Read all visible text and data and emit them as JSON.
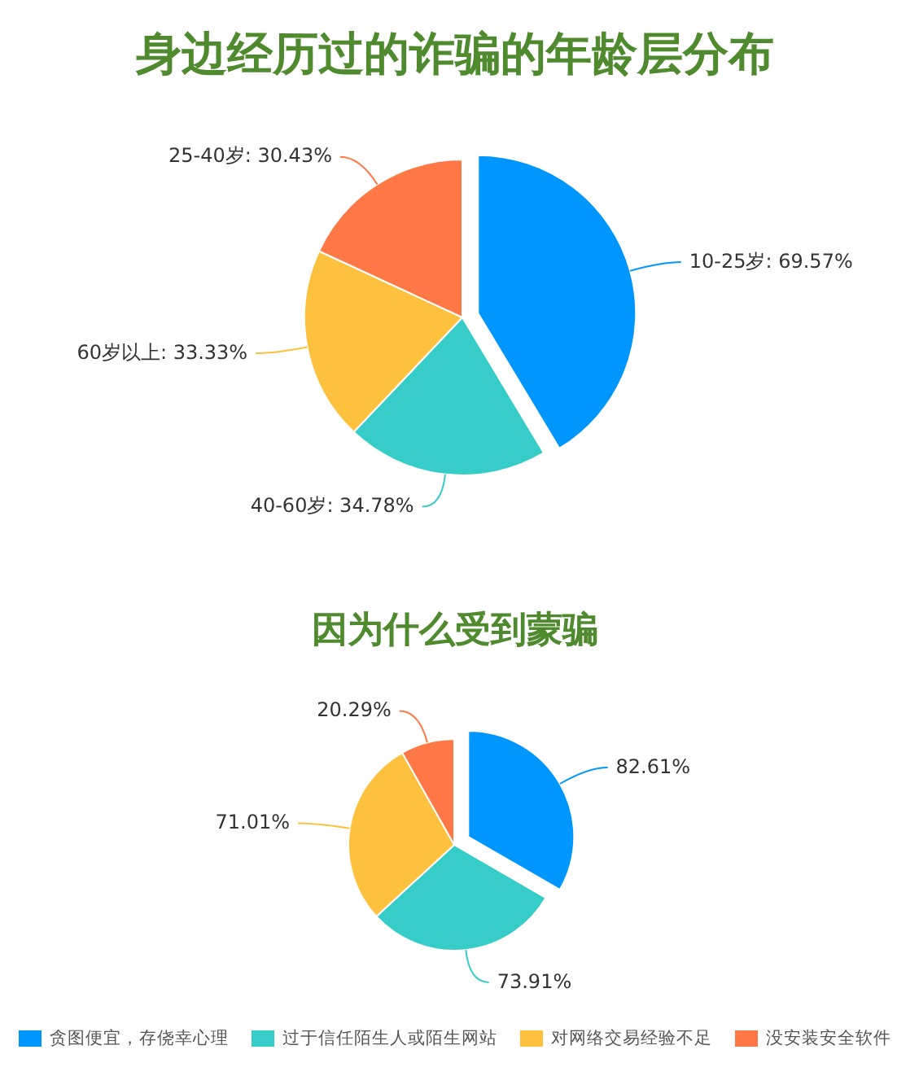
{
  "chart_data": [
    {
      "type": "pie",
      "title": "身边经历过的诈骗的年龄层分布",
      "categories": [
        "10-25岁",
        "40-60岁",
        "60岁以上",
        "25-40岁"
      ],
      "values": [
        69.57,
        34.78,
        33.33,
        30.43
      ],
      "colors": [
        "#0096ff",
        "#36cdc9",
        "#fdc13d",
        "#ff7845"
      ],
      "value_labels": [
        "69.57%",
        "34.78%",
        "33.33%",
        "30.43%"
      ]
    },
    {
      "type": "pie",
      "title": "因为什么受到蒙骗",
      "categories": [
        "贪图便宜，存侥幸心理",
        "过于信任陌生人或陌生网站",
        "对网络交易经验不足",
        "没安装安全软件"
      ],
      "values": [
        82.61,
        73.91,
        71.01,
        20.29
      ],
      "colors": [
        "#0096ff",
        "#36cdc9",
        "#fdc13d",
        "#ff7845"
      ],
      "value_labels": [
        "82.61%",
        "73.91%",
        "71.01%",
        "20.29%"
      ],
      "legend": "bottom"
    }
  ]
}
